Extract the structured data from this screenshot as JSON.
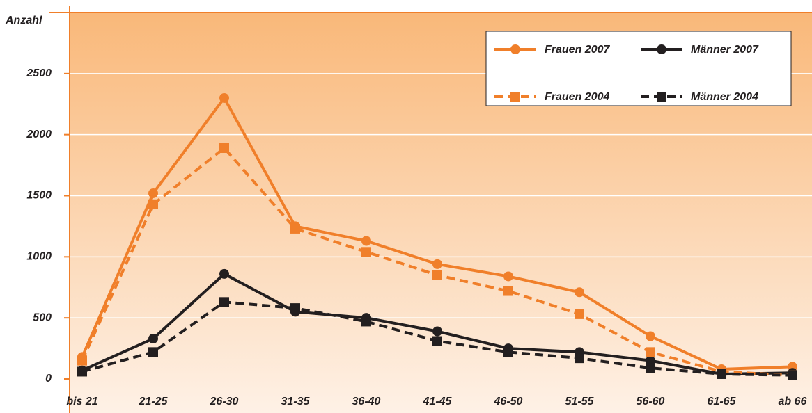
{
  "chart_data": {
    "type": "line",
    "y_label": "Anzahl",
    "categories": [
      "bis 21",
      "21-25",
      "26-30",
      "31-35",
      "36-40",
      "41-45",
      "46-50",
      "51-55",
      "56-60",
      "61-65",
      "ab 66"
    ],
    "series": [
      {
        "name": "Frauen 2007",
        "color": "#f07f2a",
        "dashed": false,
        "marker": "circle",
        "values": [
          180,
          1520,
          2300,
          1250,
          1130,
          940,
          840,
          710,
          350,
          80,
          100
        ]
      },
      {
        "name": "Männer 2007",
        "color": "#231f20",
        "dashed": false,
        "marker": "circle",
        "values": [
          70,
          330,
          860,
          550,
          500,
          390,
          250,
          220,
          150,
          40,
          50
        ]
      },
      {
        "name": "Frauen 2004",
        "color": "#f07f2a",
        "dashed": true,
        "marker": "square",
        "values": [
          150,
          1430,
          1890,
          1230,
          1040,
          850,
          720,
          530,
          220,
          60,
          30
        ]
      },
      {
        "name": "Männer 2004",
        "color": "#231f20",
        "dashed": true,
        "marker": "square",
        "values": [
          60,
          220,
          630,
          580,
          470,
          310,
          220,
          170,
          90,
          40,
          30
        ]
      }
    ],
    "ylim": [
      0,
      3000
    ],
    "yticks": [
      0,
      500,
      1000,
      1500,
      2000,
      2500
    ],
    "grid": true,
    "legend": "top-right"
  }
}
